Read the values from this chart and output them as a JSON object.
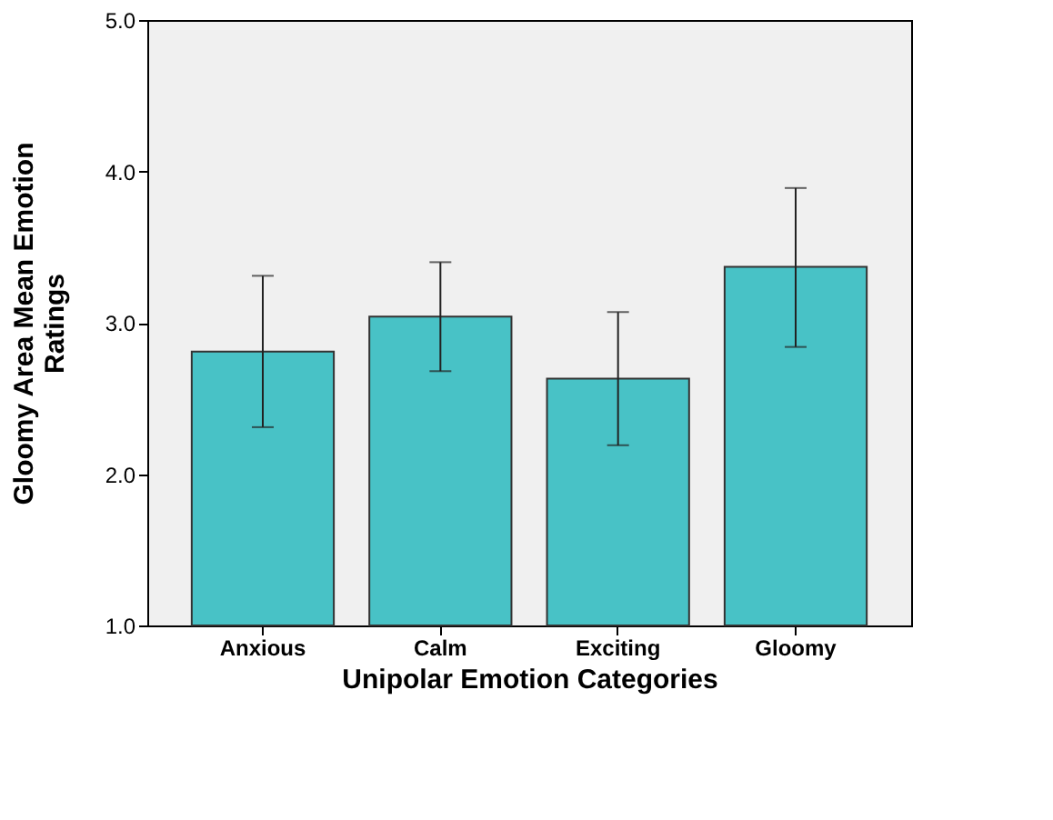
{
  "chart_data": {
    "type": "bar",
    "xlabel": "Unipolar Emotion Categories",
    "ylabel": "Gloomy Area Mean Emotion Ratings",
    "categories": [
      "Anxious",
      "Calm",
      "Exciting",
      "Gloomy"
    ],
    "values": [
      2.81,
      3.04,
      2.63,
      3.37
    ],
    "errors": [
      [
        2.31,
        3.31
      ],
      [
        2.68,
        3.4
      ],
      [
        2.19,
        3.07
      ],
      [
        2.84,
        3.89
      ]
    ],
    "color": "#48c2c6",
    "ylim": [
      1,
      5.0
    ],
    "yticks": [
      {
        "value": 1,
        "label": "1.0"
      },
      {
        "value": 2,
        "label": "2.0"
      },
      {
        "value": 3,
        "label": "3.0"
      },
      {
        "value": 4,
        "label": "4.0"
      },
      {
        "value": 5,
        "label": "5.0"
      }
    ],
    "grid": false
  }
}
